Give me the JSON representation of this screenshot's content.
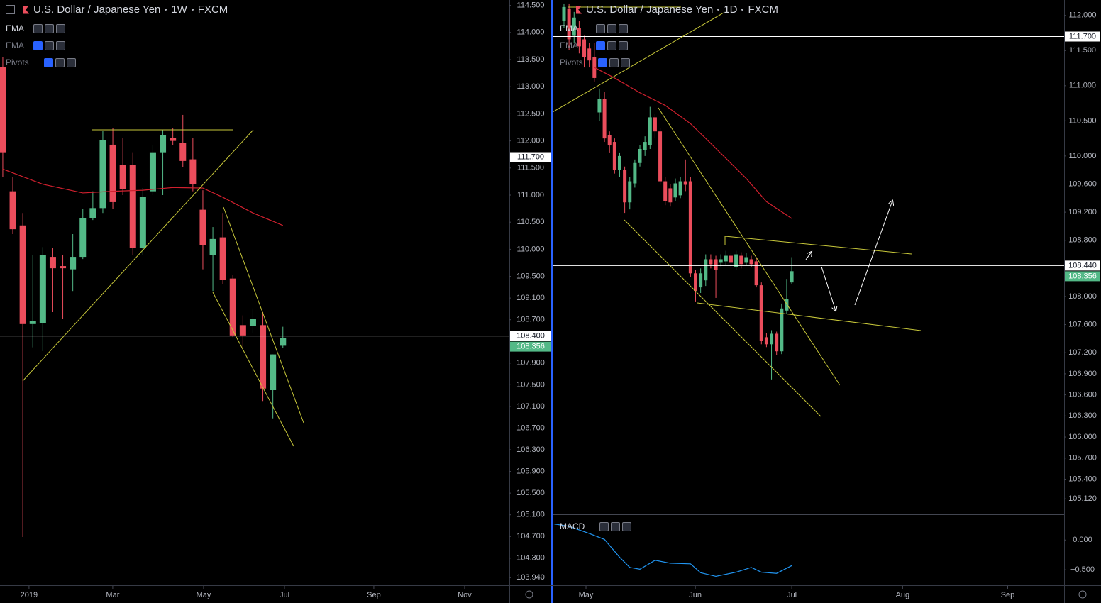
{
  "chart_data": [
    {
      "type": "candlestick",
      "title": "U.S. Dollar / Japanese Yen",
      "interval": "1W",
      "source": "FXCM",
      "indicators": [
        "EMA",
        "EMA",
        "Pivots"
      ],
      "x": [
        0,
        1,
        2,
        3,
        4,
        5,
        6,
        7,
        8,
        9,
        10,
        11,
        12,
        13,
        14,
        15,
        16,
        17,
        18,
        19,
        20,
        21,
        22,
        23,
        24,
        25,
        26,
        27,
        28
      ],
      "open": [
        113.36,
        111.07,
        110.44,
        108.62,
        108.64,
        109.86,
        109.69,
        109.63,
        109.86,
        110.58,
        110.76,
        111.93,
        111.56,
        111.56,
        110.02,
        111.07,
        111.79,
        112.05,
        111.96,
        111.66,
        110.73,
        109.89,
        110.22,
        109.46,
        108.6,
        108.58,
        108.6,
        107.4,
        108.22
      ],
      "high": [
        113.55,
        111.33,
        110.67,
        109.89,
        110.04,
        110.02,
        109.89,
        110.28,
        110.74,
        111.07,
        112.18,
        112.24,
        112.05,
        111.79,
        111.13,
        111.92,
        112.2,
        112.24,
        112.48,
        112.05,
        111.09,
        110.41,
        110.67,
        109.52,
        108.78,
        108.91,
        108.84,
        108.06,
        108.57
      ],
      "low": [
        111.33,
        110.28,
        104.69,
        108.19,
        108.12,
        108.84,
        108.71,
        109.23,
        109.82,
        110.54,
        110.67,
        110.74,
        111.0,
        109.89,
        109.89,
        111.0,
        111.0,
        111.92,
        111.52,
        111.07,
        109.63,
        109.23,
        109.36,
        108.38,
        108.19,
        108.45,
        107.2,
        106.88,
        108.18
      ],
      "close": [
        111.79,
        110.37,
        108.62,
        108.68,
        109.89,
        109.65,
        109.65,
        109.86,
        110.58,
        110.76,
        112.01,
        110.87,
        111.11,
        110.02,
        110.97,
        111.79,
        112.11,
        112.0,
        111.63,
        111.2,
        110.08,
        110.19,
        109.43,
        108.41,
        108.41,
        108.71,
        107.43,
        108.06,
        108.36
      ],
      "up_color": "#53b987",
      "down_color": "#eb4d5c",
      "ema": {
        "color": "#d0202e",
        "x": [
          0,
          4,
          8,
          11,
          14,
          17,
          20,
          22,
          25,
          28
        ],
        "values": [
          111.48,
          111.2,
          111.04,
          111.07,
          111.09,
          111.14,
          111.13,
          110.96,
          110.67,
          110.44
        ]
      },
      "hlines": [
        {
          "value": 111.7,
          "label": "111.700"
        },
        {
          "value": 108.4,
          "label": "108.400"
        }
      ],
      "last_price": {
        "value": 108.356,
        "label": "108.356"
      },
      "xlim": [
        -0.28,
        50.64
      ],
      "xticks": [
        {
          "value": 2.62,
          "label": "2019"
        },
        {
          "value": 10.99,
          "label": "Mar"
        },
        {
          "value": 20.07,
          "label": "May"
        },
        {
          "value": 28.16,
          "label": "Jul"
        },
        {
          "value": 37.09,
          "label": "Sep"
        },
        {
          "value": 46.17,
          "label": "Nov"
        }
      ],
      "ylim": [
        103.8,
        114.6
      ],
      "yticks": [
        {
          "value": 114.5,
          "label": "114.500"
        },
        {
          "value": 114,
          "label": "114.000"
        },
        {
          "value": 113.5,
          "label": "113.500"
        },
        {
          "value": 113,
          "label": "113.000"
        },
        {
          "value": 112.5,
          "label": "112.500"
        },
        {
          "value": 112,
          "label": "112.000"
        },
        {
          "value": 111.5,
          "label": "111.500"
        },
        {
          "value": 111,
          "label": "111.000"
        },
        {
          "value": 110.5,
          "label": "110.500"
        },
        {
          "value": 110,
          "label": "110.000"
        },
        {
          "value": 109.5,
          "label": "109.500"
        },
        {
          "value": 109.1,
          "label": "109.100"
        },
        {
          "value": 108.7,
          "label": "108.700"
        },
        {
          "value": 107.9,
          "label": "107.900"
        },
        {
          "value": 107.5,
          "label": "107.500"
        },
        {
          "value": 107.1,
          "label": "107.100"
        },
        {
          "value": 106.7,
          "label": "106.700"
        },
        {
          "value": 106.3,
          "label": "106.300"
        },
        {
          "value": 105.9,
          "label": "105.900"
        },
        {
          "value": 105.5,
          "label": "105.500"
        },
        {
          "value": 105.1,
          "label": "105.100"
        },
        {
          "value": 104.7,
          "label": "104.700"
        },
        {
          "value": 104.3,
          "label": "104.300"
        },
        {
          "value": 103.94,
          "label": "103.940"
        }
      ]
    },
    {
      "type": "candlestick",
      "title": "U.S. Dollar / Japanese Yen",
      "interval": "1D",
      "source": "FXCM",
      "indicators": [
        "EMA",
        "EMA",
        "Pivots"
      ],
      "x": [
        0,
        1,
        2,
        3,
        4,
        5,
        6,
        7,
        8,
        9,
        10,
        11,
        12,
        13,
        14,
        15,
        16,
        17,
        18,
        19,
        20,
        21,
        22,
        23,
        24,
        25,
        26,
        27,
        28,
        29,
        30,
        31,
        32,
        33,
        34,
        35,
        36,
        37,
        38,
        39,
        40,
        41,
        42,
        43,
        44,
        45
      ],
      "open": [
        111.92,
        112.1,
        111.71,
        111.82,
        111.66,
        111.53,
        111.41,
        110.62,
        110.81,
        110.3,
        110.2,
        109.8,
        109.8,
        109.34,
        109.61,
        109.9,
        110.08,
        110.15,
        110.55,
        110.35,
        109.64,
        109.54,
        109.41,
        109.44,
        109.64,
        109.64,
        108.33,
        108.13,
        108.23,
        108.53,
        108.53,
        108.48,
        108.5,
        108.58,
        108.42,
        108.58,
        108.48,
        108.53,
        108.5,
        108.16,
        107.42,
        107.32,
        107.47,
        107.22,
        107.8,
        108.2
      ],
      "high": [
        112.17,
        112.17,
        112.05,
        111.92,
        111.71,
        111.61,
        111.61,
        110.96,
        110.91,
        110.35,
        110.25,
        110.05,
        109.85,
        109.7,
        109.95,
        110.15,
        110.28,
        110.7,
        110.6,
        110.4,
        109.7,
        109.6,
        109.68,
        109.7,
        109.95,
        109.7,
        108.38,
        108.4,
        108.6,
        108.6,
        108.58,
        108.6,
        108.65,
        108.62,
        108.65,
        108.63,
        108.62,
        108.58,
        108.55,
        108.2,
        107.48,
        107.52,
        107.5,
        107.9,
        108.25,
        108.56
      ],
      "low": [
        111.82,
        111.51,
        111.61,
        111.46,
        111.26,
        111.26,
        111.06,
        110.5,
        110.2,
        110.05,
        109.75,
        109.7,
        109.19,
        109.24,
        109.55,
        109.85,
        110.0,
        110.1,
        110.25,
        109.59,
        109.3,
        109.28,
        109.36,
        109.4,
        109.5,
        108.28,
        107.93,
        108.05,
        108.15,
        108.4,
        107.98,
        108.43,
        108.45,
        108.42,
        108.38,
        108.4,
        108.44,
        108.42,
        108.13,
        107.32,
        107.28,
        106.82,
        107.17,
        107.18,
        107.75,
        108.18
      ],
      "close": [
        112.12,
        111.66,
        111.97,
        111.56,
        111.41,
        111.36,
        111.11,
        110.81,
        110.25,
        110.15,
        109.8,
        110.0,
        109.34,
        109.64,
        109.9,
        110.1,
        110.2,
        110.55,
        110.35,
        109.64,
        109.36,
        109.34,
        109.61,
        109.64,
        109.59,
        108.33,
        108.08,
        108.33,
        108.53,
        108.46,
        108.38,
        108.53,
        108.58,
        108.48,
        108.6,
        108.46,
        108.56,
        108.46,
        108.16,
        107.37,
        107.32,
        107.47,
        107.22,
        107.83,
        107.96,
        108.36
      ],
      "up_color": "#53b987",
      "down_color": "#eb4d5c",
      "ema": {
        "color": "#d0202e",
        "x": [
          6,
          10,
          15,
          20,
          25,
          29,
          36,
          40,
          45
        ],
        "values": [
          111.26,
          111.11,
          110.9,
          110.72,
          110.46,
          110.18,
          109.68,
          109.35,
          109.11
        ]
      },
      "hlines": [
        {
          "value": 111.7,
          "label": "111.700"
        },
        {
          "value": 108.44,
          "label": "108.440"
        }
      ],
      "last_price": {
        "value": 108.356,
        "label": "108.356"
      },
      "xlim": [
        -2.24,
        98.8
      ],
      "xticks": [
        {
          "value": 4.35,
          "label": "May"
        },
        {
          "value": 25.95,
          "label": "Jun"
        },
        {
          "value": 45,
          "label": "Jul"
        },
        {
          "value": 66.9,
          "label": "Aug"
        },
        {
          "value": 87.66,
          "label": "Sep"
        }
      ],
      "ylim": [
        104.9,
        112.22
      ],
      "yticks": [
        {
          "value": 112,
          "label": "112.000"
        },
        {
          "value": 111.5,
          "label": "111.500"
        },
        {
          "value": 111,
          "label": "111.000"
        },
        {
          "value": 110.5,
          "label": "110.500"
        },
        {
          "value": 110,
          "label": "110.000"
        },
        {
          "value": 109.6,
          "label": "109.600"
        },
        {
          "value": 109.2,
          "label": "109.200"
        },
        {
          "value": 108.8,
          "label": "108.800"
        },
        {
          "value": 108,
          "label": "108.000"
        },
        {
          "value": 107.6,
          "label": "107.600"
        },
        {
          "value": 107.2,
          "label": "107.200"
        },
        {
          "value": 106.9,
          "label": "106.900"
        },
        {
          "value": 106.6,
          "label": "106.600"
        },
        {
          "value": 106.3,
          "label": "106.300"
        },
        {
          "value": 106,
          "label": "106.000"
        },
        {
          "value": 105.7,
          "label": "105.700"
        },
        {
          "value": 105.4,
          "label": "105.400"
        },
        {
          "value": 105.12,
          "label": "105.120"
        }
      ]
    },
    {
      "type": "line",
      "title": "MACD",
      "color": "#2196f3",
      "x": [
        -2,
        1,
        5,
        8,
        11,
        13,
        15,
        18,
        21,
        25,
        27,
        30,
        34,
        37,
        39,
        42,
        45
      ],
      "values": [
        0.27,
        0.23,
        0.11,
        0.01,
        -0.29,
        -0.46,
        -0.49,
        -0.34,
        -0.39,
        -0.4,
        -0.55,
        -0.61,
        -0.54,
        -0.46,
        -0.54,
        -0.56,
        -0.43
      ],
      "xlim": [
        -2.24,
        98.8
      ],
      "ylim": [
        -0.76,
        0.42
      ],
      "yticks": [
        {
          "value": 0,
          "label": "0.000"
        },
        {
          "value": -0.5,
          "label": "−0.500"
        }
      ]
    }
  ]
}
